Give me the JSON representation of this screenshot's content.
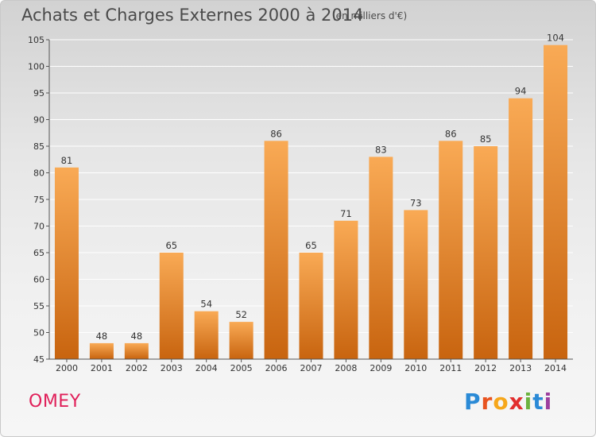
{
  "title": "Achats et Charges Externes 2000 à 2014",
  "subtitle": "(en milliers d'€)",
  "commune": "OMEY",
  "logo": {
    "text": "Proxiti",
    "letters": [
      "P",
      "r",
      "o",
      "x",
      "i",
      "t",
      "i"
    ],
    "colors": [
      "#2a8ad6",
      "#e8531f",
      "#f6a71b",
      "#e22f2f",
      "#6db33f",
      "#2a8ad6",
      "#9d3f9e"
    ]
  },
  "colors": {
    "bar_top": "#f9aa55",
    "bar_bottom": "#c8640f",
    "grid": "#ffffff",
    "axis": "#555555"
  },
  "chart_data": {
    "type": "bar",
    "categories": [
      "2000",
      "2001",
      "2002",
      "2003",
      "2004",
      "2005",
      "2006",
      "2007",
      "2008",
      "2009",
      "2010",
      "2011",
      "2012",
      "2013",
      "2014"
    ],
    "values": [
      81,
      48,
      48,
      65,
      54,
      52,
      86,
      65,
      71,
      83,
      73,
      86,
      85,
      94,
      104
    ],
    "xlabel": "",
    "ylabel": "",
    "ylim": [
      45,
      105
    ],
    "yticks": [
      45,
      50,
      55,
      60,
      65,
      70,
      75,
      80,
      85,
      90,
      95,
      100,
      105
    ],
    "grid": true,
    "legend": "none",
    "data_labels": true
  }
}
